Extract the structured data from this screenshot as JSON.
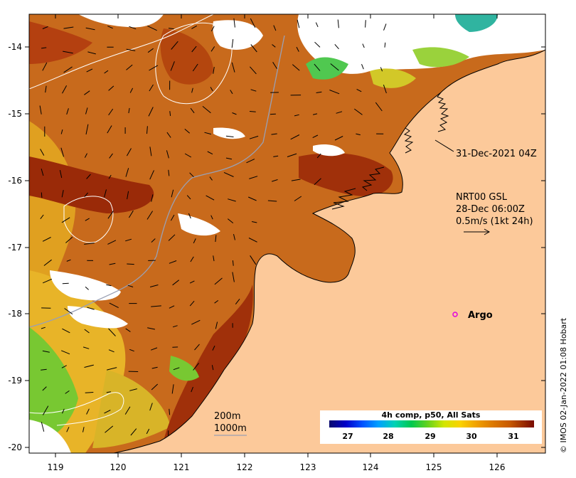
{
  "map": {
    "x_ticks": [
      "119",
      "120",
      "121",
      "122",
      "123",
      "124",
      "125",
      "126"
    ],
    "y_ticks": [
      "-14",
      "-15",
      "-16",
      "-17",
      "-18",
      "-19",
      "-20"
    ],
    "sst_timestamp": "31-Dec-2021 04Z",
    "current_legend": {
      "line1": "NRT00 GSL",
      "line2": "28-Dec 06:00Z",
      "line3": "0.5m/s (1kt 24h)"
    },
    "argo_label": "Argo",
    "isobaths": {
      "shallow": "200m",
      "deep": "1000m"
    },
    "colorbar": {
      "title": "4h comp, p50, All Sats",
      "ticks": [
        "27",
        "28",
        "29",
        "30",
        "31"
      ],
      "colors": [
        "#0a0a6e",
        "#0000c8",
        "#0050ff",
        "#00a0ff",
        "#00d2b4",
        "#00c850",
        "#64d21e",
        "#d2e600",
        "#fad200",
        "#f0a000",
        "#dc7800",
        "#c85a00",
        "#a03200",
        "#780a00"
      ]
    },
    "credit": "© IMOS 02-Jan-2022 01:08 Hobart",
    "colors": {
      "land": "#fcc99a",
      "warm": "#c35a12",
      "hot": "#8e1a08",
      "cool": "#e0a520",
      "cloud": "#ffffff"
    }
  }
}
